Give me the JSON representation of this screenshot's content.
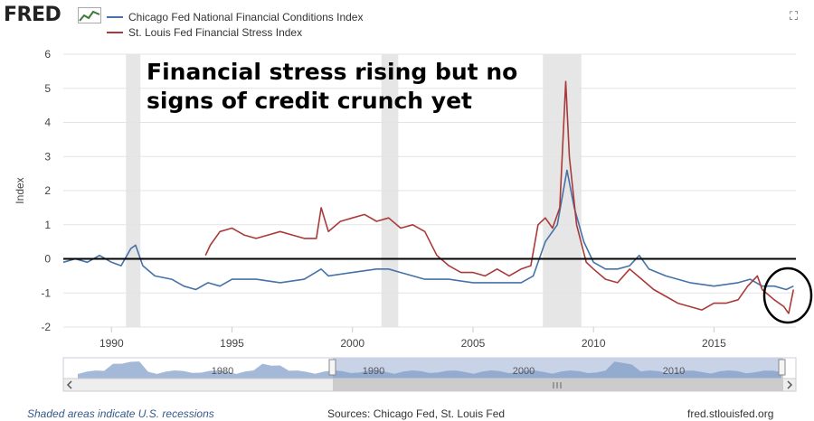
{
  "brand": {
    "logo_text": "FRED",
    "logo_icon": "line-chart-icon",
    "expand_icon": "fullscreen-icon"
  },
  "colors": {
    "series1": "#4572a7",
    "series2": "#aa3a3a",
    "recession": "#e6e6e6",
    "zero_line": "#000000",
    "annotation_circle": "#000000"
  },
  "footer": {
    "note": "Shaded areas indicate U.S. recessions",
    "sources": "Sources: Chicago Fed, St. Louis Fed",
    "url": "fred.stlouisfed.org"
  },
  "chart_data": {
    "type": "line",
    "title": "",
    "ylabel": "Index",
    "xlabel": "",
    "ylim": [
      -2,
      6
    ],
    "xlim": [
      1988,
      2018.4
    ],
    "yticks": [
      "-2",
      "-1",
      "0",
      "1",
      "2",
      "3",
      "4",
      "5",
      "6"
    ],
    "xticks": [
      "1990",
      "1995",
      "2000",
      "2005",
      "2010",
      "2015"
    ],
    "grid": true,
    "legend_placement": "top-left",
    "annotation": {
      "text_line1": "Financial stress rising but no",
      "text_line2": "signs of credit crunch yet"
    },
    "recessions": [
      [
        1990.6,
        1991.2
      ],
      [
        2001.2,
        2001.9
      ],
      [
        2007.9,
        2009.5
      ]
    ],
    "navigator": {
      "ticks": [
        "1980",
        "1990",
        "2000",
        "2010"
      ]
    },
    "series": [
      {
        "name": "Chicago Fed National Financial Conditions Index",
        "x": [
          1988,
          1988.5,
          1989,
          1989.5,
          1990,
          1990.4,
          1990.8,
          1991.0,
          1991.3,
          1991.8,
          1992.5,
          1993,
          1993.5,
          1994,
          1994.5,
          1995,
          1996,
          1997,
          1998,
          1998.7,
          1999,
          2000,
          2001,
          2001.5,
          2002,
          2003,
          2004,
          2005,
          2006,
          2007,
          2007.5,
          2008,
          2008.5,
          2008.9,
          2009.2,
          2009.6,
          2010,
          2010.5,
          2011,
          2011.5,
          2011.9,
          2012.3,
          2013,
          2014,
          2015,
          2016,
          2016.5,
          2017,
          2017.5,
          2018,
          2018.3
        ],
        "values": [
          -0.1,
          0.0,
          -0.1,
          0.1,
          -0.1,
          -0.2,
          0.3,
          0.4,
          -0.2,
          -0.5,
          -0.6,
          -0.8,
          -0.9,
          -0.7,
          -0.8,
          -0.6,
          -0.6,
          -0.7,
          -0.6,
          -0.3,
          -0.5,
          -0.4,
          -0.3,
          -0.3,
          -0.4,
          -0.6,
          -0.6,
          -0.7,
          -0.7,
          -0.7,
          -0.5,
          0.5,
          1.0,
          2.6,
          1.5,
          0.5,
          -0.1,
          -0.3,
          -0.3,
          -0.2,
          0.1,
          -0.3,
          -0.5,
          -0.7,
          -0.8,
          -0.7,
          -0.6,
          -0.8,
          -0.8,
          -0.9,
          -0.8
        ]
      },
      {
        "name": "St. Louis Fed Financial Stress Index",
        "x": [
          1993.9,
          1994.1,
          1994.5,
          1995,
          1995.5,
          1996,
          1996.5,
          1997,
          1997.5,
          1998,
          1998.5,
          1998.7,
          1999,
          1999.5,
          2000,
          2000.5,
          2001,
          2001.5,
          2002,
          2002.5,
          2003,
          2003.5,
          2004,
          2004.5,
          2005,
          2005.5,
          2006,
          2006.5,
          2007,
          2007.4,
          2007.7,
          2008,
          2008.3,
          2008.6,
          2008.85,
          2009,
          2009.3,
          2009.7,
          2010,
          2010.5,
          2011,
          2011.5,
          2012,
          2012.5,
          2013,
          2013.5,
          2014,
          2014.5,
          2015,
          2015.5,
          2016,
          2016.4,
          2016.8,
          2017,
          2017.5,
          2017.9,
          2018.1,
          2018.3
        ],
        "values": [
          0.1,
          0.4,
          0.8,
          0.9,
          0.7,
          0.6,
          0.7,
          0.8,
          0.7,
          0.6,
          0.6,
          1.5,
          0.8,
          1.1,
          1.2,
          1.3,
          1.1,
          1.2,
          0.9,
          1.0,
          0.8,
          0.1,
          -0.2,
          -0.4,
          -0.4,
          -0.5,
          -0.3,
          -0.5,
          -0.3,
          -0.2,
          1.0,
          1.2,
          0.9,
          1.5,
          5.2,
          3.0,
          1.0,
          -0.1,
          -0.3,
          -0.6,
          -0.7,
          -0.3,
          -0.6,
          -0.9,
          -1.1,
          -1.3,
          -1.4,
          -1.5,
          -1.3,
          -1.3,
          -1.2,
          -0.8,
          -0.5,
          -0.9,
          -1.2,
          -1.4,
          -1.6,
          -0.9
        ]
      }
    ]
  }
}
